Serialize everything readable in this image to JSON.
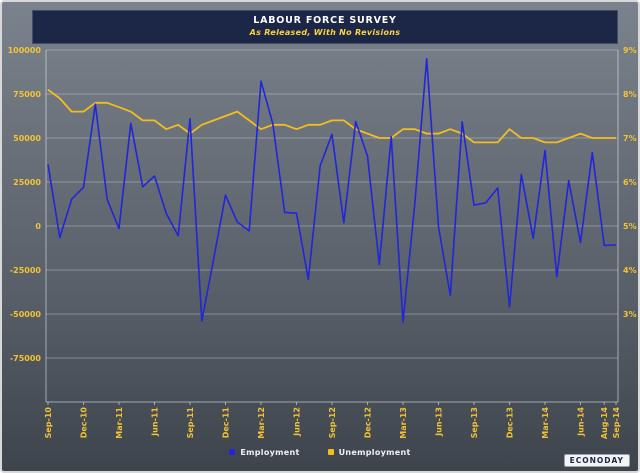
{
  "branding": {
    "logo_text": "ECONODAY"
  },
  "chart_data": {
    "type": "line",
    "title": "LABOUR FORCE SURVEY",
    "subtitle": "As Released, With No Revisions",
    "x": [
      "Sep-10",
      "Oct-10",
      "Nov-10",
      "Dec-10",
      "Jan-11",
      "Feb-11",
      "Mar-11",
      "Apr-11",
      "May-11",
      "Jun-11",
      "Jul-11",
      "Aug-11",
      "Sep-11",
      "Oct-11",
      "Nov-11",
      "Dec-11",
      "Jan-12",
      "Feb-12",
      "Mar-12",
      "Apr-12",
      "May-12",
      "Jun-12",
      "Jul-12",
      "Aug-12",
      "Sep-12",
      "Oct-12",
      "Nov-12",
      "Dec-12",
      "Jan-13",
      "Feb-13",
      "Mar-13",
      "Apr-13",
      "May-13",
      "Jun-13",
      "Jul-13",
      "Aug-13",
      "Sep-13",
      "Oct-13",
      "Nov-13",
      "Dec-13",
      "Jan-14",
      "Feb-14",
      "Mar-14",
      "Apr-14",
      "May-14",
      "Jun-14",
      "Jul-14",
      "Aug-14",
      "Sep-14"
    ],
    "x_tick_indices": [
      0,
      3,
      6,
      9,
      12,
      15,
      18,
      21,
      24,
      27,
      30,
      33,
      36,
      39,
      42,
      45,
      47,
      48
    ],
    "series": [
      {
        "name": "Employment",
        "yaxis": "left",
        "color": "#2126d8",
        "values": [
          35000,
          -6600,
          15200,
          22000,
          69200,
          15100,
          -1500,
          58300,
          22300,
          28400,
          7100,
          -5500,
          60900,
          -54000,
          -18600,
          17500,
          2300,
          -2800,
          82300,
          58200,
          7700,
          7300,
          -30400,
          34300,
          52100,
          1800,
          59300,
          39800,
          -21900,
          50700,
          -54500,
          12500,
          95000,
          -400,
          -39400,
          59200,
          11900,
          13200,
          21600,
          -45900,
          29400,
          -7000,
          42900,
          -28900,
          25800,
          -9400,
          41700,
          -11000,
          -10800
        ]
      },
      {
        "name": "Unemployment",
        "yaxis": "right",
        "color": "#f3bd1e",
        "values": [
          8.1,
          7.9,
          7.6,
          7.6,
          7.8,
          7.8,
          7.7,
          7.6,
          7.4,
          7.4,
          7.2,
          7.3,
          7.1,
          7.3,
          7.4,
          7.5,
          7.6,
          7.4,
          7.2,
          7.3,
          7.3,
          7.2,
          7.3,
          7.3,
          7.4,
          7.4,
          7.2,
          7.1,
          7.0,
          7.0,
          7.2,
          7.2,
          7.1,
          7.1,
          7.2,
          7.1,
          6.9,
          6.9,
          6.9,
          7.2,
          7.0,
          7.0,
          6.9,
          6.9,
          7.0,
          7.1,
          7.0,
          7.0,
          7.0
        ]
      }
    ],
    "left_axis": {
      "min": -100000,
      "max": 100000,
      "ticks": [
        100000,
        75000,
        50000,
        25000,
        0,
        -25000,
        -50000,
        -75000
      ],
      "tick_labels": [
        "100000",
        "75000",
        "50000",
        "25000",
        "0",
        "-25000",
        "-50000",
        "-75000"
      ]
    },
    "right_axis": {
      "min": 1,
      "max": 9,
      "ticks": [
        9,
        8,
        7,
        6,
        5,
        4,
        3
      ],
      "tick_labels": [
        "9%",
        "8%",
        "7%",
        "6%",
        "5%",
        "4%",
        "3%"
      ]
    },
    "legend_position": "bottom",
    "grid": "horizontal"
  },
  "colors": {
    "employment_line": "#2126d8",
    "unemployment_line": "#f3bd1e",
    "axis_label": "#f2c334",
    "title_bar": "#1c2747",
    "subtitle_text": "#ffd23f"
  }
}
